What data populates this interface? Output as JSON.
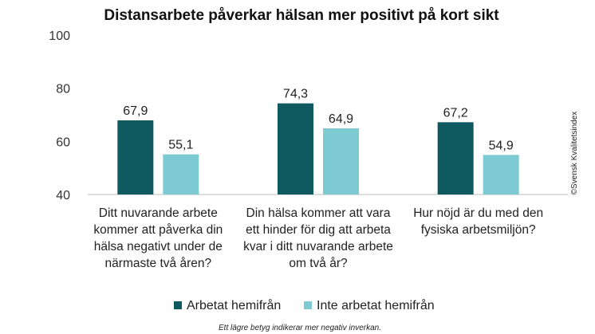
{
  "chart_data": {
    "type": "bar",
    "title": "Distansarbete påverkar hälsan mer positivt på kort sikt",
    "xlabel": "",
    "ylabel": "",
    "ylim": [
      40,
      100
    ],
    "yticks": [
      40,
      60,
      80,
      100
    ],
    "categories": [
      [
        "Ditt nuvarande arbete",
        "kommer att påverka din",
        "hälsa negativt under de",
        "närmaste två åren?"
      ],
      [
        "Din hälsa kommer att vara",
        "ett hinder för dig att arbeta",
        "kvar i ditt nuvarande arbete",
        "om två år?"
      ],
      [
        "Hur nöjd är du med den",
        "fysiska arbetsmiljön?"
      ]
    ],
    "series": [
      {
        "name": "Arbetat hemifrån",
        "color": "#0e5a60",
        "values": [
          67.9,
          74.3,
          67.2
        ],
        "labels": [
          "67,9",
          "74,3",
          "67,2"
        ]
      },
      {
        "name": "Inte arbetat hemifrån",
        "color": "#7ecad3",
        "values": [
          55.1,
          64.9,
          54.9
        ],
        "labels": [
          "55,1",
          "64,9",
          "54,9"
        ]
      }
    ],
    "grid": false,
    "legend_position": "bottom",
    "footnote": "Ett lägre betyg indikerar mer negativ inverkan.",
    "credit": "©Svensk Kvalitetsindex"
  }
}
